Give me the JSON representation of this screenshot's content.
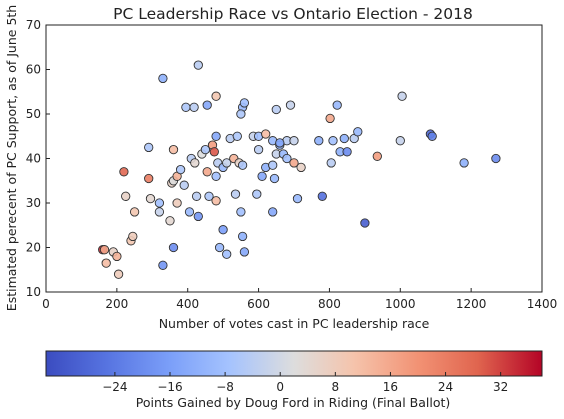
{
  "chart_data": {
    "type": "scatter",
    "title": "PC Leadership Race vs Ontario Election - 2018",
    "xlabel": "Number of votes cast in PC leadership race",
    "ylabel": "Estimated perecent of PC Support, as of June 5th",
    "xlim": [
      0,
      1400
    ],
    "ylim": [
      10,
      70
    ],
    "xticks": [
      "0",
      "200",
      "400",
      "600",
      "800",
      "1000",
      "1200",
      "1400"
    ],
    "yticks": [
      "10",
      "20",
      "30",
      "40",
      "50",
      "60",
      "70"
    ],
    "grid": false,
    "colorbar": {
      "label": "Points Gained by Doug Ford in Riding (Final Ballot)",
      "min": -34,
      "max": 38,
      "colormap": "coolwarm",
      "ticks": [
        "−24",
        "−16",
        "−8",
        "0",
        "8",
        "16",
        "24",
        "32"
      ]
    },
    "colors": {
      "cold": "#3b4cc0",
      "neutral": "#dddddd",
      "warm": "#b40426"
    },
    "points": [
      {
        "x": 330,
        "y": 58,
        "c": -12
      },
      {
        "x": 430,
        "y": 61,
        "c": -4
      },
      {
        "x": 480,
        "y": 54,
        "c": 10
      },
      {
        "x": 395,
        "y": 51.5,
        "c": -6
      },
      {
        "x": 418,
        "y": 51.5,
        "c": -4
      },
      {
        "x": 455,
        "y": 52,
        "c": -14
      },
      {
        "x": 555,
        "y": 51.5,
        "c": -10
      },
      {
        "x": 560,
        "y": 52.5,
        "c": -8
      },
      {
        "x": 550,
        "y": 50,
        "c": -6
      },
      {
        "x": 650,
        "y": 51,
        "c": -4
      },
      {
        "x": 690,
        "y": 52,
        "c": -2
      },
      {
        "x": 822,
        "y": 52,
        "c": -10
      },
      {
        "x": 1005,
        "y": 54,
        "c": -2
      },
      {
        "x": 802,
        "y": 49,
        "c": 16
      },
      {
        "x": 480,
        "y": 45,
        "c": -14
      },
      {
        "x": 520,
        "y": 44.5,
        "c": -4
      },
      {
        "x": 540,
        "y": 45,
        "c": -6
      },
      {
        "x": 585,
        "y": 45,
        "c": -2
      },
      {
        "x": 600,
        "y": 45,
        "c": -8
      },
      {
        "x": 620,
        "y": 45.5,
        "c": 12
      },
      {
        "x": 640,
        "y": 44,
        "c": -10
      },
      {
        "x": 660,
        "y": 43,
        "c": -12
      },
      {
        "x": 680,
        "y": 44,
        "c": -4
      },
      {
        "x": 700,
        "y": 44,
        "c": -2
      },
      {
        "x": 770,
        "y": 44,
        "c": -12
      },
      {
        "x": 810,
        "y": 44,
        "c": -8
      },
      {
        "x": 842,
        "y": 44.5,
        "c": -12
      },
      {
        "x": 870,
        "y": 44.5,
        "c": -4
      },
      {
        "x": 880,
        "y": 46,
        "c": -10
      },
      {
        "x": 1000,
        "y": 44,
        "c": -2
      },
      {
        "x": 1085,
        "y": 45.5,
        "c": -28
      },
      {
        "x": 1090,
        "y": 45,
        "c": -22
      },
      {
        "x": 1180,
        "y": 39,
        "c": -12
      },
      {
        "x": 1270,
        "y": 40,
        "c": -20
      },
      {
        "x": 290,
        "y": 42.5,
        "c": -6
      },
      {
        "x": 360,
        "y": 42,
        "c": 12
      },
      {
        "x": 410,
        "y": 40,
        "c": -4
      },
      {
        "x": 420,
        "y": 39,
        "c": 4
      },
      {
        "x": 440,
        "y": 41,
        "c": 2
      },
      {
        "x": 450,
        "y": 42,
        "c": -6
      },
      {
        "x": 470,
        "y": 43,
        "c": 18
      },
      {
        "x": 475,
        "y": 41.5,
        "c": 30
      },
      {
        "x": 485,
        "y": 39,
        "c": -4
      },
      {
        "x": 500,
        "y": 38,
        "c": -10
      },
      {
        "x": 510,
        "y": 39,
        "c": -2
      },
      {
        "x": 530,
        "y": 40,
        "c": 14
      },
      {
        "x": 545,
        "y": 39,
        "c": 6
      },
      {
        "x": 555,
        "y": 38.5,
        "c": -6
      },
      {
        "x": 600,
        "y": 42,
        "c": -4
      },
      {
        "x": 620,
        "y": 38,
        "c": -12
      },
      {
        "x": 640,
        "y": 38.5,
        "c": -6
      },
      {
        "x": 650,
        "y": 41,
        "c": -2
      },
      {
        "x": 660,
        "y": 43.5,
        "c": -14
      },
      {
        "x": 670,
        "y": 41,
        "c": -10
      },
      {
        "x": 680,
        "y": 40,
        "c": -8
      },
      {
        "x": 700,
        "y": 39,
        "c": 16
      },
      {
        "x": 720,
        "y": 38,
        "c": 6
      },
      {
        "x": 805,
        "y": 39,
        "c": -4
      },
      {
        "x": 830,
        "y": 41.5,
        "c": -12
      },
      {
        "x": 850,
        "y": 41.5,
        "c": -20
      },
      {
        "x": 935,
        "y": 40.5,
        "c": 18
      },
      {
        "x": 220,
        "y": 37,
        "c": 28
      },
      {
        "x": 290,
        "y": 35.5,
        "c": 24
      },
      {
        "x": 355,
        "y": 34.5,
        "c": 6
      },
      {
        "x": 360,
        "y": 35,
        "c": 2
      },
      {
        "x": 370,
        "y": 36,
        "c": 14
      },
      {
        "x": 380,
        "y": 37.5,
        "c": -6
      },
      {
        "x": 390,
        "y": 34,
        "c": -4
      },
      {
        "x": 455,
        "y": 37,
        "c": 16
      },
      {
        "x": 480,
        "y": 36,
        "c": -8
      },
      {
        "x": 610,
        "y": 36,
        "c": -14
      },
      {
        "x": 645,
        "y": 35.5,
        "c": -10
      },
      {
        "x": 225,
        "y": 31.5,
        "c": 6
      },
      {
        "x": 295,
        "y": 31,
        "c": 4
      },
      {
        "x": 320,
        "y": 30,
        "c": -8
      },
      {
        "x": 370,
        "y": 30,
        "c": 8
      },
      {
        "x": 425,
        "y": 31.5,
        "c": -4
      },
      {
        "x": 460,
        "y": 31.5,
        "c": -6
      },
      {
        "x": 480,
        "y": 30.5,
        "c": 12
      },
      {
        "x": 535,
        "y": 32,
        "c": -4
      },
      {
        "x": 595,
        "y": 32,
        "c": -6
      },
      {
        "x": 710,
        "y": 31,
        "c": -10
      },
      {
        "x": 780,
        "y": 31.5,
        "c": -26
      },
      {
        "x": 250,
        "y": 28,
        "c": 10
      },
      {
        "x": 320,
        "y": 28,
        "c": -2
      },
      {
        "x": 350,
        "y": 26,
        "c": 4
      },
      {
        "x": 405,
        "y": 28,
        "c": -10
      },
      {
        "x": 430,
        "y": 27,
        "c": -18
      },
      {
        "x": 500,
        "y": 24,
        "c": -16
      },
      {
        "x": 550,
        "y": 28,
        "c": -8
      },
      {
        "x": 640,
        "y": 28,
        "c": -14
      },
      {
        "x": 900,
        "y": 25.5,
        "c": -30
      },
      {
        "x": 160,
        "y": 19.5,
        "c": 34
      },
      {
        "x": 165,
        "y": 19.5,
        "c": 16
      },
      {
        "x": 190,
        "y": 19,
        "c": 6
      },
      {
        "x": 200,
        "y": 18,
        "c": 14
      },
      {
        "x": 170,
        "y": 16.5,
        "c": 12
      },
      {
        "x": 205,
        "y": 14,
        "c": 8
      },
      {
        "x": 240,
        "y": 21.5,
        "c": 10
      },
      {
        "x": 245,
        "y": 22.5,
        "c": 8
      },
      {
        "x": 360,
        "y": 20,
        "c": -20
      },
      {
        "x": 330,
        "y": 16,
        "c": -18
      },
      {
        "x": 490,
        "y": 20,
        "c": -10
      },
      {
        "x": 510,
        "y": 18.5,
        "c": -8
      },
      {
        "x": 555,
        "y": 22.5,
        "c": -12
      },
      {
        "x": 560,
        "y": 19,
        "c": -14
      }
    ]
  }
}
